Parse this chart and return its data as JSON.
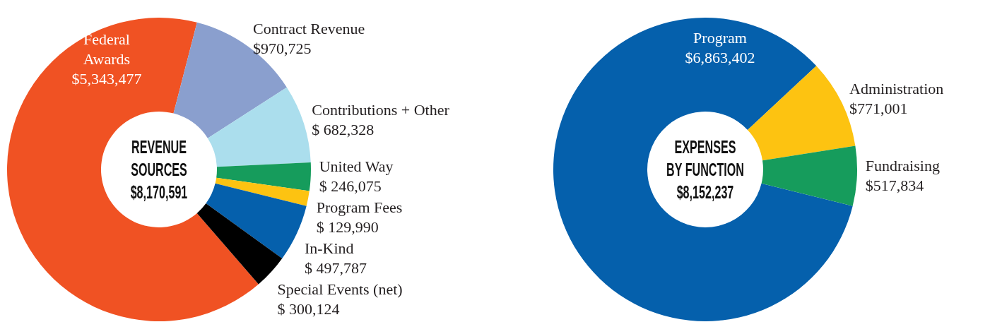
{
  "chart_data": [
    {
      "type": "donut",
      "title": "REVENUE SOURCES",
      "subtitle": "$8,170,591",
      "categories": [
        "Federal Awards",
        "Contract Revenue",
        "Contributions + Other",
        "United Way",
        "Program Fees",
        "In-Kind",
        "Special Events (net)"
      ],
      "values": [
        5343477,
        970725,
        682328,
        246075,
        129990,
        497787,
        300124
      ],
      "value_labels": [
        "$5,343,477",
        "$970,725",
        "$ 682,328",
        "$ 246,075",
        "$ 129,990",
        "$ 497,787",
        "$ 300,124"
      ],
      "colors": [
        "#f05223",
        "#8a9fce",
        "#abdeed",
        "#169c5c",
        "#fdc311",
        "#0560ac",
        "#000000"
      ]
    },
    {
      "type": "donut",
      "title": "EXPENSES BY FUNCTION",
      "subtitle": "$8,152,237",
      "categories": [
        "Program",
        "Administration",
        "Fundraising"
      ],
      "values": [
        6863402,
        771001,
        517834
      ],
      "value_labels": [
        "$6,863,402",
        "$771,001",
        "$517,834"
      ],
      "colors": [
        "#0560ac",
        "#fdc311",
        "#169c5c"
      ]
    }
  ]
}
